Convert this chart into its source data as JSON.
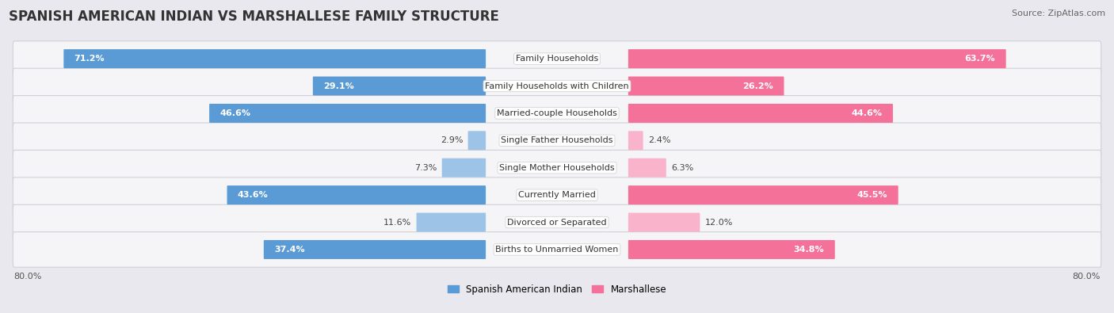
{
  "title": "SPANISH AMERICAN INDIAN VS MARSHALLESE FAMILY STRUCTURE",
  "source": "Source: ZipAtlas.com",
  "categories": [
    "Family Households",
    "Family Households with Children",
    "Married-couple Households",
    "Single Father Households",
    "Single Mother Households",
    "Currently Married",
    "Divorced or Separated",
    "Births to Unmarried Women"
  ],
  "left_values": [
    71.2,
    29.1,
    46.6,
    2.9,
    7.3,
    43.6,
    11.6,
    37.4
  ],
  "right_values": [
    63.7,
    26.2,
    44.6,
    2.4,
    6.3,
    45.5,
    12.0,
    34.8
  ],
  "left_color_strong": "#5b9bd5",
  "left_color_light": "#9dc3e6",
  "right_color_strong": "#f4719a",
  "right_color_light": "#f9b3cb",
  "max_val": 80.0,
  "left_label": "Spanish American Indian",
  "right_label": "Marshallese",
  "background_color": "#e8e8ee",
  "row_bg_color": "#f5f5f8",
  "title_fontsize": 12,
  "source_fontsize": 8,
  "label_fontsize": 8,
  "value_fontsize": 8,
  "strong_threshold": 20
}
